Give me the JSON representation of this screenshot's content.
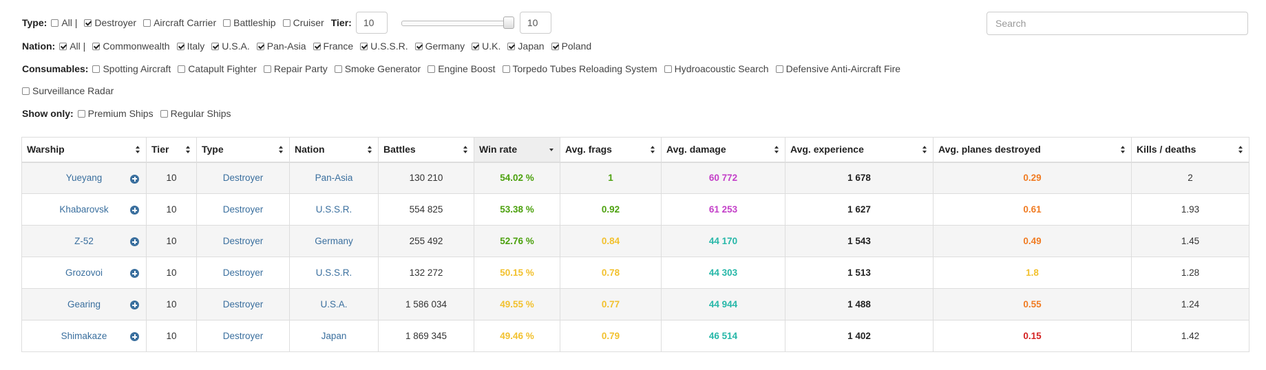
{
  "filters": {
    "type": {
      "label": "Type:",
      "options": [
        {
          "label": "All |",
          "checked": false
        },
        {
          "label": "Destroyer",
          "checked": true
        },
        {
          "label": "Aircraft Carrier",
          "checked": false
        },
        {
          "label": "Battleship",
          "checked": false
        },
        {
          "label": "Cruiser",
          "checked": false
        }
      ]
    },
    "tier": {
      "label": "Tier:",
      "min": "10",
      "max": "10"
    },
    "search": {
      "placeholder": "Search"
    },
    "nation": {
      "label": "Nation:",
      "options": [
        {
          "label": "All |",
          "checked": true
        },
        {
          "label": "Commonwealth",
          "checked": true
        },
        {
          "label": "Italy",
          "checked": true
        },
        {
          "label": "U.S.A.",
          "checked": true
        },
        {
          "label": "Pan-Asia",
          "checked": true
        },
        {
          "label": "France",
          "checked": true
        },
        {
          "label": "U.S.S.R.",
          "checked": true
        },
        {
          "label": "Germany",
          "checked": true
        },
        {
          "label": "U.K.",
          "checked": true
        },
        {
          "label": "Japan",
          "checked": true
        },
        {
          "label": "Poland",
          "checked": true
        }
      ]
    },
    "consumables": {
      "label": "Consumables:",
      "options": [
        {
          "label": "Spotting Aircraft",
          "checked": false
        },
        {
          "label": "Catapult Fighter",
          "checked": false
        },
        {
          "label": "Repair Party",
          "checked": false
        },
        {
          "label": "Smoke Generator",
          "checked": false
        },
        {
          "label": "Engine Boost",
          "checked": false
        },
        {
          "label": "Torpedo Tubes Reloading System",
          "checked": false
        },
        {
          "label": "Hydroacoustic Search",
          "checked": false
        },
        {
          "label": "Defensive Anti-Aircraft Fire",
          "checked": false
        }
      ],
      "extra": {
        "label": "Surveillance Radar",
        "checked": false
      }
    },
    "show_only": {
      "label": "Show only:",
      "options": [
        {
          "label": "Premium Ships",
          "checked": false
        },
        {
          "label": "Regular Ships",
          "checked": false
        }
      ]
    }
  },
  "table": {
    "columns": [
      "Warship",
      "Tier",
      "Type",
      "Nation",
      "Battles",
      "Win rate",
      "Avg. frags",
      "Avg. damage",
      "Avg. experience",
      "Avg. planes destroyed",
      "Kills / deaths"
    ],
    "sorted_column": "Win rate",
    "expand_icon": "plus-circle-icon",
    "rows": [
      {
        "warship": "Yueyang",
        "tier": "10",
        "type": "Destroyer",
        "nation": "Pan-Asia",
        "battles": "130 210",
        "win_rate": "54.02 %",
        "win_rate_color": "#4ca10e",
        "frags": "1",
        "frags_color": "#4ca10e",
        "damage": "60 772",
        "damage_color": "#c33fc8",
        "experience": "1 678",
        "planes": "0.29",
        "planes_color": "#f07b22",
        "kd": "2"
      },
      {
        "warship": "Khabarovsk",
        "tier": "10",
        "type": "Destroyer",
        "nation": "U.S.S.R.",
        "battles": "554 825",
        "win_rate": "53.38 %",
        "win_rate_color": "#4ca10e",
        "frags": "0.92",
        "frags_color": "#4ca10e",
        "damage": "61 253",
        "damage_color": "#c33fc8",
        "experience": "1 627",
        "planes": "0.61",
        "planes_color": "#f07b22",
        "kd": "1.93"
      },
      {
        "warship": "Z-52",
        "tier": "10",
        "type": "Destroyer",
        "nation": "Germany",
        "battles": "255 492",
        "win_rate": "52.76 %",
        "win_rate_color": "#4ca10e",
        "frags": "0.84",
        "frags_color": "#f2c12e",
        "damage": "44 170",
        "damage_color": "#26b7a8",
        "experience": "1 543",
        "planes": "0.49",
        "planes_color": "#f07b22",
        "kd": "1.45"
      },
      {
        "warship": "Grozovoi",
        "tier": "10",
        "type": "Destroyer",
        "nation": "U.S.S.R.",
        "battles": "132 272",
        "win_rate": "50.15 %",
        "win_rate_color": "#f2c12e",
        "frags": "0.78",
        "frags_color": "#f2c12e",
        "damage": "44 303",
        "damage_color": "#26b7a8",
        "experience": "1 513",
        "planes": "1.8",
        "planes_color": "#f2c12e",
        "kd": "1.28"
      },
      {
        "warship": "Gearing",
        "tier": "10",
        "type": "Destroyer",
        "nation": "U.S.A.",
        "battles": "1 586 034",
        "win_rate": "49.55 %",
        "win_rate_color": "#f2c12e",
        "frags": "0.77",
        "frags_color": "#f2c12e",
        "damage": "44 944",
        "damage_color": "#26b7a8",
        "experience": "1 488",
        "planes": "0.55",
        "planes_color": "#f07b22",
        "kd": "1.24"
      },
      {
        "warship": "Shimakaze",
        "tier": "10",
        "type": "Destroyer",
        "nation": "Japan",
        "battles": "1 869 345",
        "win_rate": "49.46 %",
        "win_rate_color": "#f2c12e",
        "frags": "0.79",
        "frags_color": "#f2c12e",
        "damage": "46 514",
        "damage_color": "#26b7a8",
        "experience": "1 402",
        "planes": "0.15",
        "planes_color": "#d42121",
        "kd": "1.42"
      }
    ]
  }
}
